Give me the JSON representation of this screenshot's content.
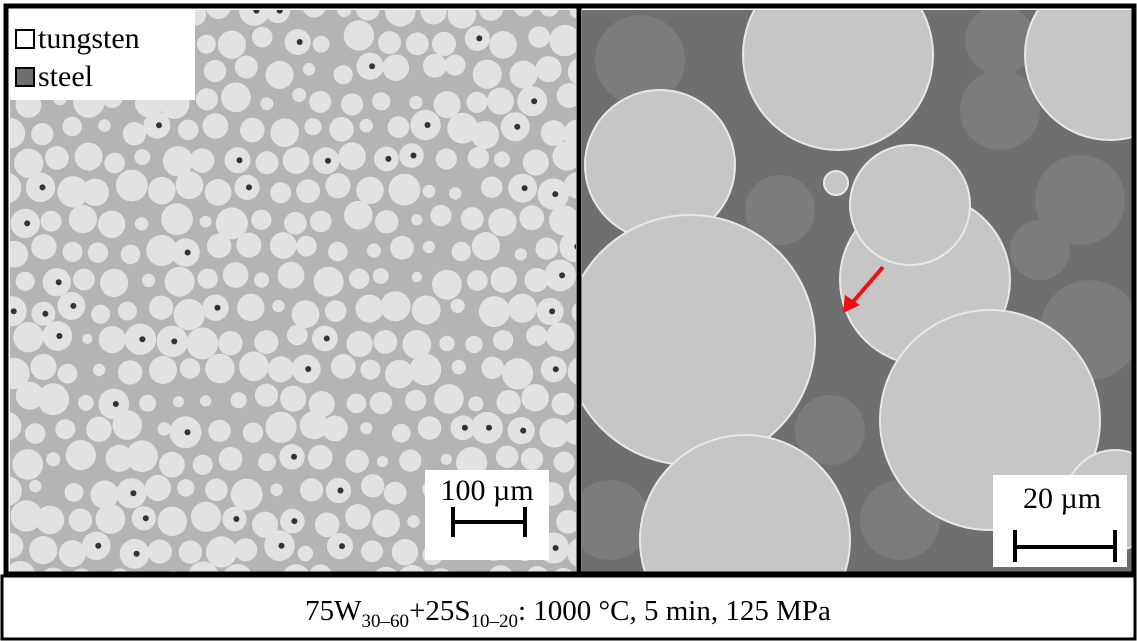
{
  "left_panel": {
    "legend": [
      {
        "label": "tungsten"
      },
      {
        "label": "steel"
      }
    ],
    "scale_bar": "100 µm"
  },
  "right_panel": {
    "scale_bar": "20 µm"
  },
  "caption": {
    "parts": [
      "75W",
      "30–60",
      "+25S",
      "10–20",
      ": 1000 °C, 5 min, 125 MPa"
    ]
  }
}
